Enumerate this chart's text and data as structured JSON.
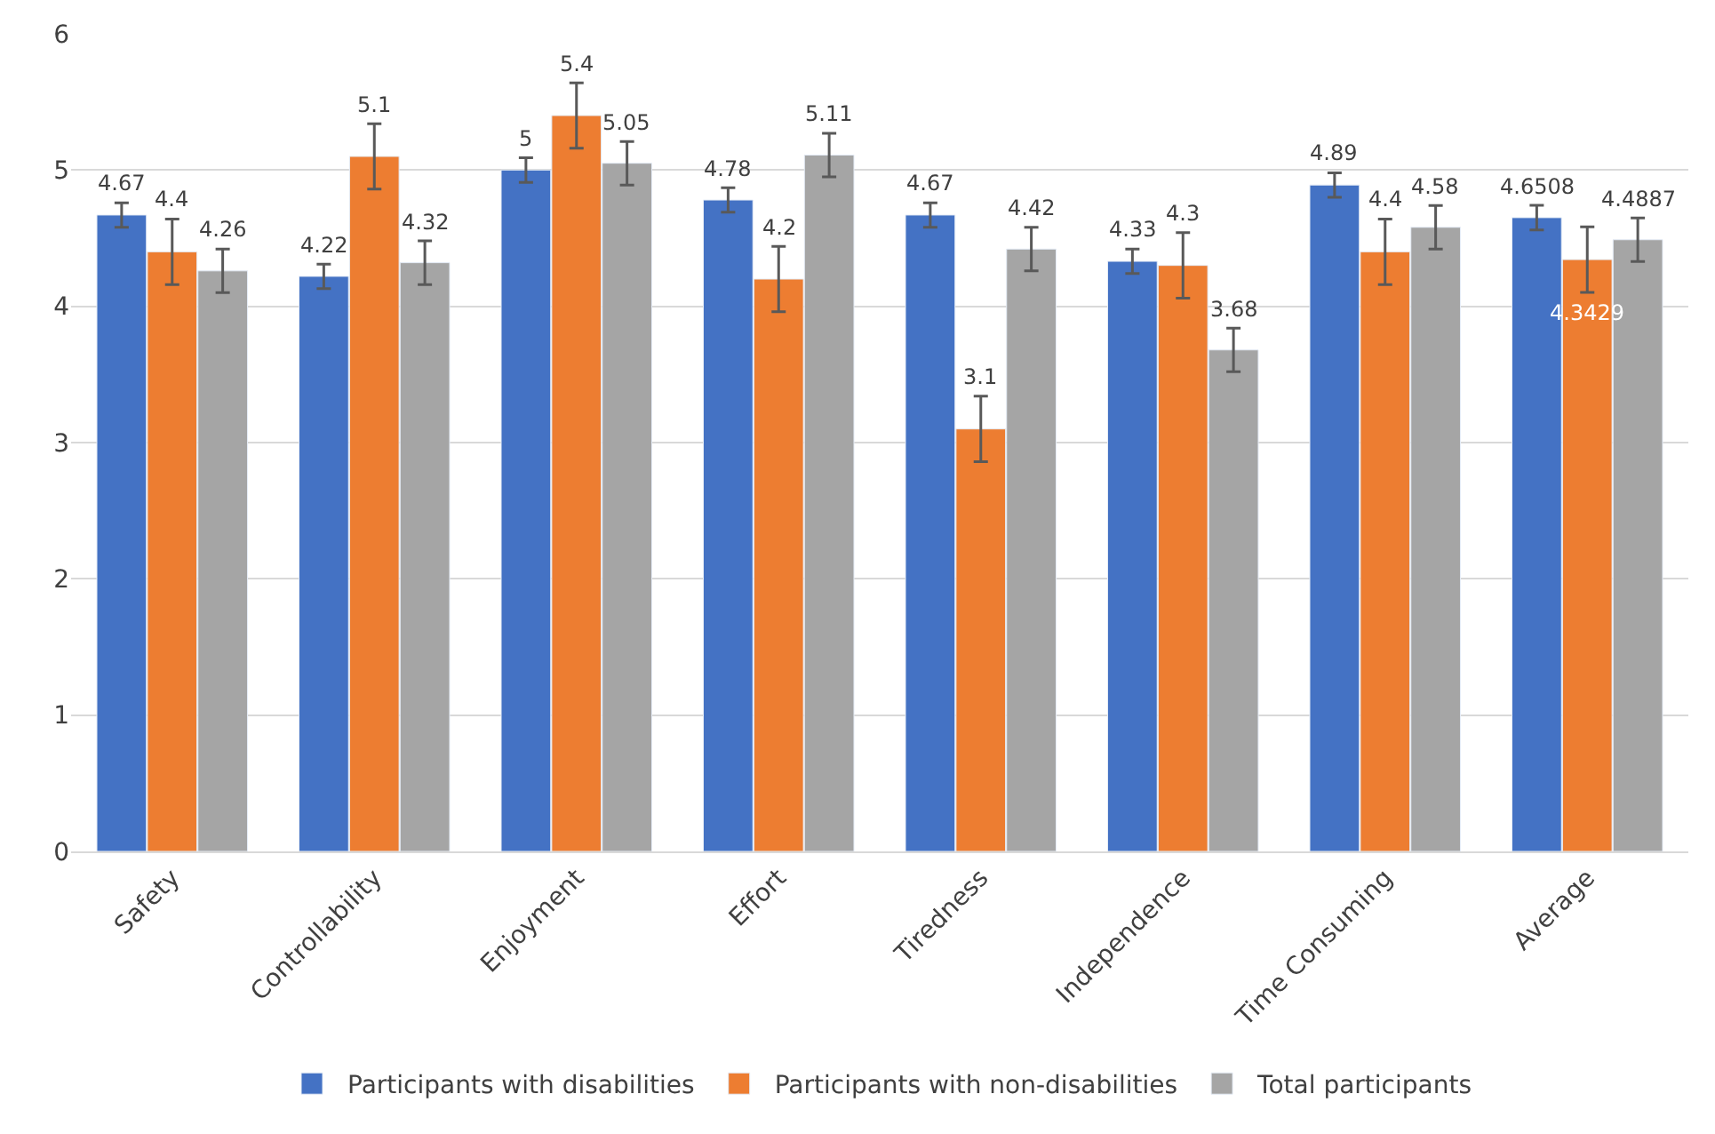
{
  "chart_data": {
    "type": "bar",
    "categories": [
      "Safety",
      "Controllability",
      "Enjoyment",
      "Effort",
      "Tiredness",
      "Independence",
      "Time Consuming",
      "Average"
    ],
    "series": [
      {
        "name": "Participants with disabilities",
        "color": "#4472c4",
        "values": [
          4.67,
          4.22,
          5,
          4.78,
          4.67,
          4.33,
          4.89,
          4.6508
        ],
        "errors": [
          0.09,
          0.09,
          0.09,
          0.09,
          0.09,
          0.09,
          0.09,
          0.09
        ]
      },
      {
        "name": "Participants with non-disabilities",
        "color": "#ed7d31",
        "values": [
          4.4,
          5.1,
          5.4,
          4.2,
          3.1,
          4.3,
          4.4,
          4.3429
        ],
        "errors": [
          0.24,
          0.24,
          0.24,
          0.24,
          0.24,
          0.24,
          0.24,
          0.24
        ]
      },
      {
        "name": "Total participants",
        "color": "#a5a5a5",
        "values": [
          4.26,
          4.32,
          5.05,
          5.11,
          4.42,
          3.68,
          4.58,
          4.4887
        ],
        "errors": [
          0.16,
          0.16,
          0.16,
          0.16,
          0.16,
          0.16,
          0.16,
          0.16
        ]
      }
    ],
    "ylim": [
      0,
      6
    ],
    "yticks": [
      0,
      1,
      2,
      3,
      4,
      5,
      6
    ],
    "grid": "y",
    "legend": "bottom",
    "data_labels": true
  }
}
